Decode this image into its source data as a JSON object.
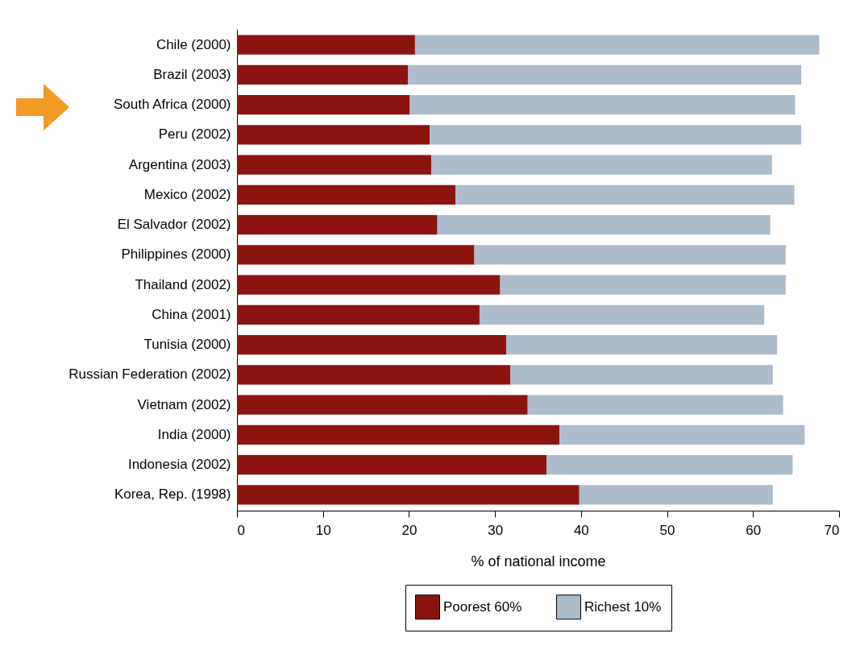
{
  "chart_data": {
    "type": "bar",
    "orientation": "horizontal",
    "stacked": true,
    "xlabel": "% of national income",
    "categories": [
      "Chile (2000)",
      "Brazil (2003)",
      "South Africa (2000)",
      "Peru (2002)",
      "Argentina (2003)",
      "Mexico (2002)",
      "El Salvador (2002)",
      "Philippines (2000)",
      "Thailand (2002)",
      "China (2001)",
      "Tunisia (2000)",
      "Russian Federation (2002)",
      "Vietnam (2002)",
      "India (2000)",
      "Indonesia (2002)",
      "Korea, Rep. (1998)"
    ],
    "series": [
      {
        "name": "Poorest 60%",
        "color": "#8b1410",
        "values": [
          20.7,
          19.9,
          20.1,
          22.4,
          22.6,
          25.4,
          23.3,
          27.6,
          30.6,
          28.2,
          31.3,
          31.8,
          33.8,
          37.5,
          36.0,
          39.8
        ]
      },
      {
        "name": "Richest 10%",
        "color": "#adbccb",
        "values": [
          47.0,
          45.7,
          44.8,
          43.2,
          39.6,
          39.4,
          38.7,
          36.2,
          33.2,
          33.1,
          31.5,
          30.5,
          29.7,
          28.5,
          28.6,
          22.5
        ]
      }
    ],
    "xlim": [
      0,
      70
    ],
    "xticks": [
      0,
      10,
      20,
      30,
      40,
      50,
      60,
      70
    ],
    "grid": false,
    "legend": "bottom"
  }
}
